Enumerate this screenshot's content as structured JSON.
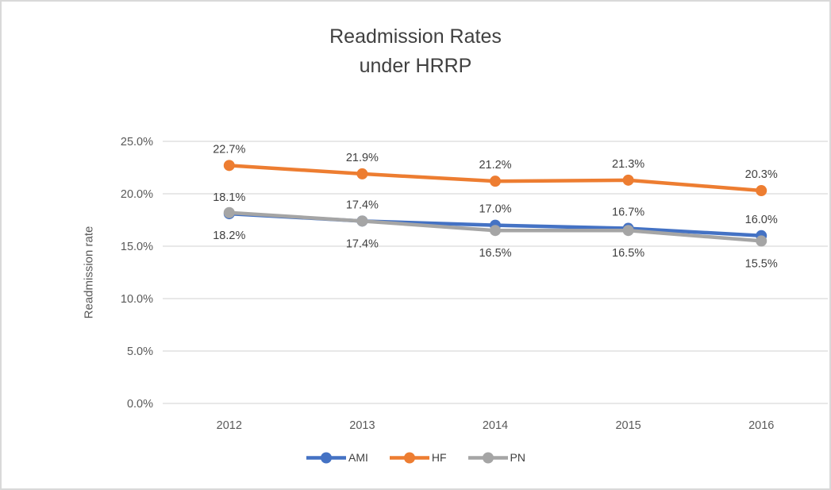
{
  "title": {
    "line1": "Readmission Rates",
    "line2": "under HRRP"
  },
  "chart_data": {
    "type": "line",
    "title": "Readmission Rates under HRRP",
    "xlabel": "",
    "ylabel": "Readmission rate",
    "categories": [
      "2012",
      "2013",
      "2014",
      "2015",
      "2016"
    ],
    "series": [
      {
        "name": "AMI",
        "color": "#4472C4",
        "values": [
          18.1,
          17.4,
          17.0,
          16.7,
          16.0
        ],
        "labels": [
          "18.1%",
          "17.4%",
          "17.0%",
          "16.7%",
          "16.0%"
        ],
        "label_position": "above"
      },
      {
        "name": "HF",
        "color": "#ED7D31",
        "values": [
          22.7,
          21.9,
          21.2,
          21.3,
          20.3
        ],
        "labels": [
          "22.7%",
          "21.9%",
          "21.2%",
          "21.3%",
          "20.3%"
        ],
        "label_position": "above"
      },
      {
        "name": "PN",
        "color": "#A5A5A5",
        "values": [
          18.2,
          17.4,
          16.5,
          16.5,
          15.5
        ],
        "labels": [
          "18.2%",
          "17.4%",
          "16.5%",
          "16.5%",
          "15.5%"
        ],
        "label_position": "below"
      }
    ],
    "ylim": [
      0,
      25
    ],
    "ytick_step": 5,
    "yticks": [
      "0.0%",
      "5.0%",
      "10.0%",
      "15.0%",
      "20.0%",
      "25.0%"
    ],
    "grid": true,
    "legend_position": "bottom"
  },
  "style": {
    "gridline_color": "#d9d9d9",
    "border_color": "#d9d9d9",
    "title_color": "#404040",
    "tick_color": "#595959",
    "data_label_color": "#404040"
  }
}
